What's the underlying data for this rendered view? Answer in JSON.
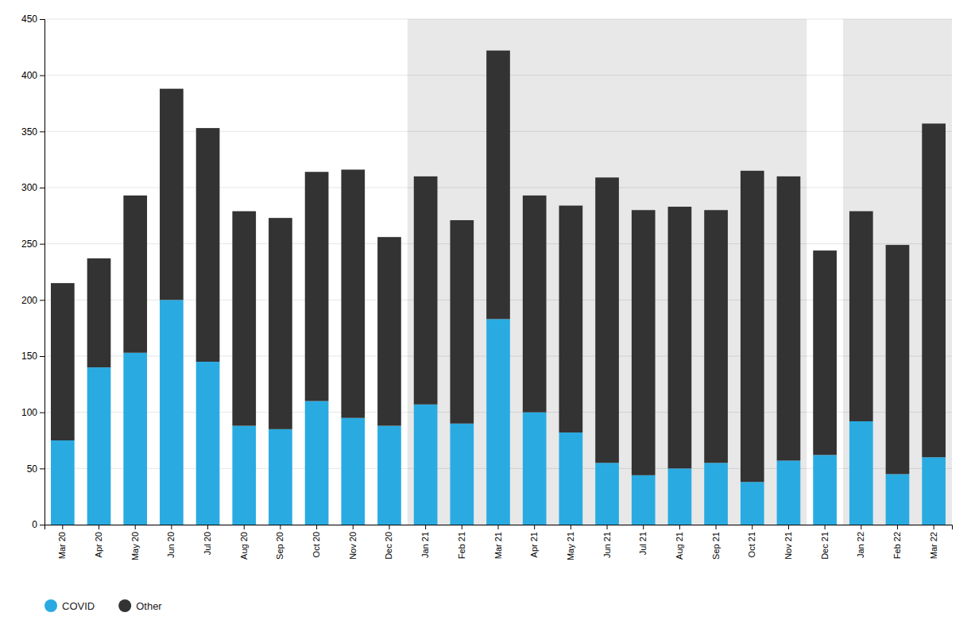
{
  "chart_data": {
    "type": "bar",
    "stacked": true,
    "categories": [
      "Mar 20",
      "Apr 20",
      "May 20",
      "Jun 20",
      "Jul 20",
      "Aug 20",
      "Sep 20",
      "Oct 20",
      "Nov 20",
      "Dec 20",
      "Jan 21",
      "Feb 21",
      "Mar 21",
      "Apr 21",
      "May 21",
      "Jun 21",
      "Jul 21",
      "Aug 21",
      "Sep 21",
      "Oct 21",
      "Nov 21",
      "Dec 21",
      "Jan 22",
      "Feb 22",
      "Mar 22"
    ],
    "series": [
      {
        "name": "COVID",
        "color": "#29ABE2",
        "values": [
          75,
          140,
          153,
          200,
          145,
          88,
          85,
          110,
          95,
          88,
          107,
          90,
          183,
          100,
          82,
          55,
          44,
          50,
          55,
          38,
          57,
          62,
          92,
          45,
          60
        ]
      },
      {
        "name": "Other",
        "color": "#333333",
        "values": [
          140,
          97,
          140,
          188,
          208,
          191,
          188,
          204,
          221,
          168,
          203,
          181,
          239,
          193,
          202,
          254,
          236,
          233,
          225,
          277,
          253,
          182,
          187,
          204,
          297
        ]
      }
    ],
    "shaded": [
      {
        "start": "Jan 21",
        "end": "Nov 21",
        "color": "#E8E8E8"
      },
      {
        "start": "Jan 22",
        "end": "Mar 22",
        "color": "#E8E8E8"
      }
    ],
    "ylim": [
      0,
      450
    ],
    "yticks": [
      0,
      50,
      100,
      150,
      200,
      250,
      300,
      350,
      400,
      450
    ],
    "grid": true,
    "legend": "bottom"
  }
}
